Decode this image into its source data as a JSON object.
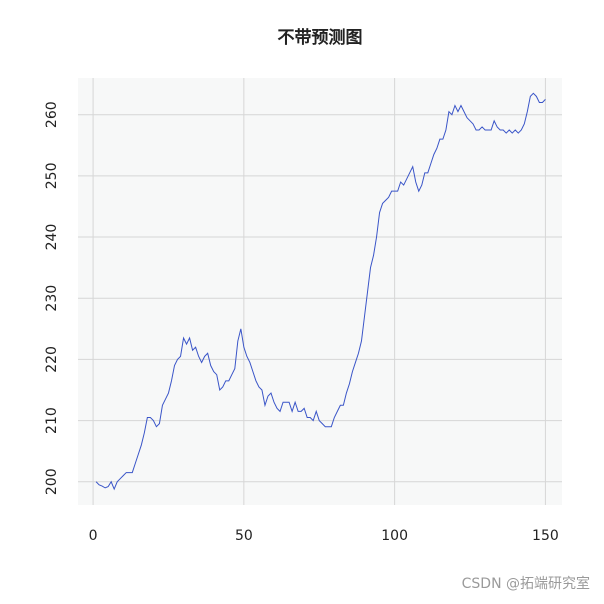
{
  "chart_data": {
    "type": "line",
    "title": "不带预测图",
    "watermark": "CSDN @拓端研究室",
    "x": [
      1,
      2,
      3,
      4,
      5,
      6,
      7,
      8,
      9,
      10,
      11,
      12,
      13,
      14,
      15,
      16,
      17,
      18,
      19,
      20,
      21,
      22,
      23,
      24,
      25,
      26,
      27,
      28,
      29,
      30,
      31,
      32,
      33,
      34,
      35,
      36,
      37,
      38,
      39,
      40,
      41,
      42,
      43,
      44,
      45,
      46,
      47,
      48,
      49,
      50,
      51,
      52,
      53,
      54,
      55,
      56,
      57,
      58,
      59,
      60,
      61,
      62,
      63,
      64,
      65,
      66,
      67,
      68,
      69,
      70,
      71,
      72,
      73,
      74,
      75,
      76,
      77,
      78,
      79,
      80,
      81,
      82,
      83,
      84,
      85,
      86,
      87,
      88,
      89,
      90,
      91,
      92,
      93,
      94,
      95,
      96,
      97,
      98,
      99,
      100,
      101,
      102,
      103,
      104,
      105,
      106,
      107,
      108,
      109,
      110,
      111,
      112,
      113,
      114,
      115,
      116,
      117,
      118,
      119,
      120,
      121,
      122,
      123,
      124,
      125,
      126,
      127,
      128,
      129,
      130,
      131,
      132,
      133,
      134,
      135,
      136,
      137,
      138,
      139,
      140,
      141,
      142,
      143,
      144,
      145,
      146,
      147,
      148,
      149,
      150
    ],
    "series": [
      {
        "color": "#3a55c8",
        "values": [
          200,
          199.5,
          199.3,
          199,
          199.2,
          200,
          198.8,
          200,
          200.5,
          201,
          201.5,
          201.5,
          201.5,
          203,
          204.5,
          206,
          208,
          210.5,
          210.5,
          210,
          209,
          209.5,
          212.5,
          213.5,
          214.5,
          216.5,
          219,
          220,
          220.5,
          223.5,
          222.5,
          223.5,
          221.5,
          222,
          220.5,
          219.5,
          220.5,
          221,
          219,
          218,
          217.5,
          215,
          215.5,
          216.5,
          216.5,
          217.5,
          218.5,
          223,
          225,
          222,
          220.5,
          219.5,
          218,
          216.5,
          215.5,
          215,
          212.5,
          214,
          214.5,
          213,
          212,
          211.5,
          213,
          213,
          213,
          211.5,
          213,
          211.5,
          211.5,
          212,
          210.5,
          210.5,
          210,
          211.5,
          210,
          209.5,
          209,
          209,
          209,
          210.5,
          211.5,
          212.5,
          212.5,
          214.5,
          216,
          218,
          219.5,
          221,
          223,
          227,
          231,
          235,
          237,
          240,
          244,
          245.5,
          246,
          246.5,
          247.5,
          247.5,
          247.5,
          249,
          248.5,
          249.5,
          250.5,
          251.5,
          249,
          247.5,
          248.5,
          250.5,
          250.5,
          252,
          253.5,
          254.5,
          256,
          256,
          257.5,
          260.5,
          260,
          261.5,
          260.5,
          261.5,
          260.5,
          259.5,
          259,
          258.5,
          257.5,
          257.5,
          258,
          257.5,
          257.5,
          257.5,
          259,
          258,
          257.5,
          257.5,
          257,
          257.5,
          257,
          257.5,
          257,
          257.5,
          258.5,
          260.5,
          263,
          263.5,
          263,
          262,
          262,
          262.5
        ]
      }
    ],
    "xlim": [
      -5,
      155.5
    ],
    "ylim": [
      196.2,
      266
    ],
    "xticks": [
      0,
      50,
      100,
      150
    ],
    "yticks": [
      200,
      210,
      220,
      230,
      240,
      250,
      260
    ],
    "grid": true,
    "background": "#f7f8f8"
  }
}
